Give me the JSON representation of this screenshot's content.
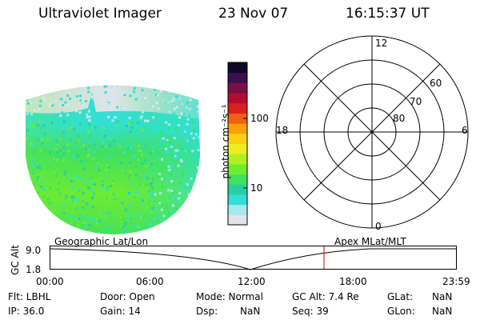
{
  "header": {
    "instrument": "Ultraviolet Imager",
    "date": "23 Nov 07",
    "time": "16:15:37 UT"
  },
  "colorbar": {
    "label": "photon cm⁻²s⁻¹",
    "ticks": [
      "100",
      "10"
    ],
    "colors": [
      "#e0e4e8",
      "#a8e8f0",
      "#30e0d8",
      "#28d0a0",
      "#40e060",
      "#70ec30",
      "#b0f020",
      "#ecec20",
      "#f8d010",
      "#f8a008",
      "#f06010",
      "#d82020",
      "#b01030",
      "#781048",
      "#3a1050",
      "#100828"
    ]
  },
  "polar": {
    "mlt_labels": {
      "top": "12",
      "left": "18",
      "right": "6",
      "bottom": "0"
    },
    "lat_labels": [
      "60",
      "70",
      "80"
    ]
  },
  "timeline": {
    "ylabel": "GC Alt",
    "y_ticks": [
      "9.0",
      "1.8"
    ],
    "left_caption": "Geographic Lat/Lon",
    "right_caption": "Apex MLat/MLT",
    "x_ticks": [
      "00:00",
      "06:00",
      "12:00",
      "18:00",
      "23:59"
    ],
    "marker_time": "16:15"
  },
  "info": {
    "row1": [
      "Flt: LBHL",
      "Door: Open",
      "Mode: Normal",
      "GC Alt: 7.4 Re",
      "GLat:",
      "NaN"
    ],
    "row2": [
      "IP: 36.0",
      "Gain: 14",
      "Dsp:",
      "NaN",
      "Seq: 39",
      "GLon:",
      "NaN"
    ]
  }
}
